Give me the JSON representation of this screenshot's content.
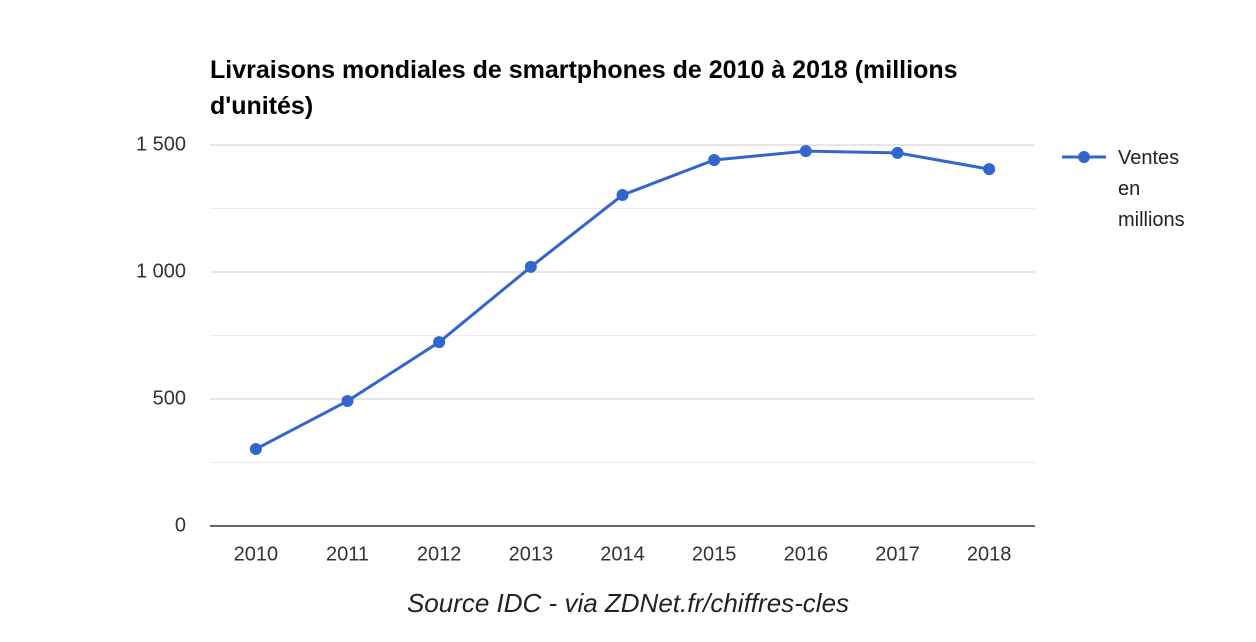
{
  "chart_data": {
    "type": "line",
    "title": "Livraisons mondiales de smartphones de 2010 à 2018 (millions d'unités)",
    "source": "Source IDC - via ZDNet.fr/chiffres-cles",
    "categories": [
      "2010",
      "2011",
      "2012",
      "2013",
      "2014",
      "2015",
      "2016",
      "2017",
      "2018"
    ],
    "series": [
      {
        "name": "Ventes en millions",
        "color": "#3366cc",
        "values": [
          303,
          492,
          724,
          1020,
          1303,
          1441,
          1476,
          1469,
          1405
        ]
      }
    ],
    "ylim": [
      0,
      1500
    ],
    "yticks": [
      0,
      500,
      {
        "value": 1000,
        "label": "1 000"
      },
      {
        "value": 1500,
        "label": "1 500"
      }
    ],
    "minor_gridlines": [
      250,
      750,
      1250
    ],
    "grid": true,
    "legend": "right"
  }
}
